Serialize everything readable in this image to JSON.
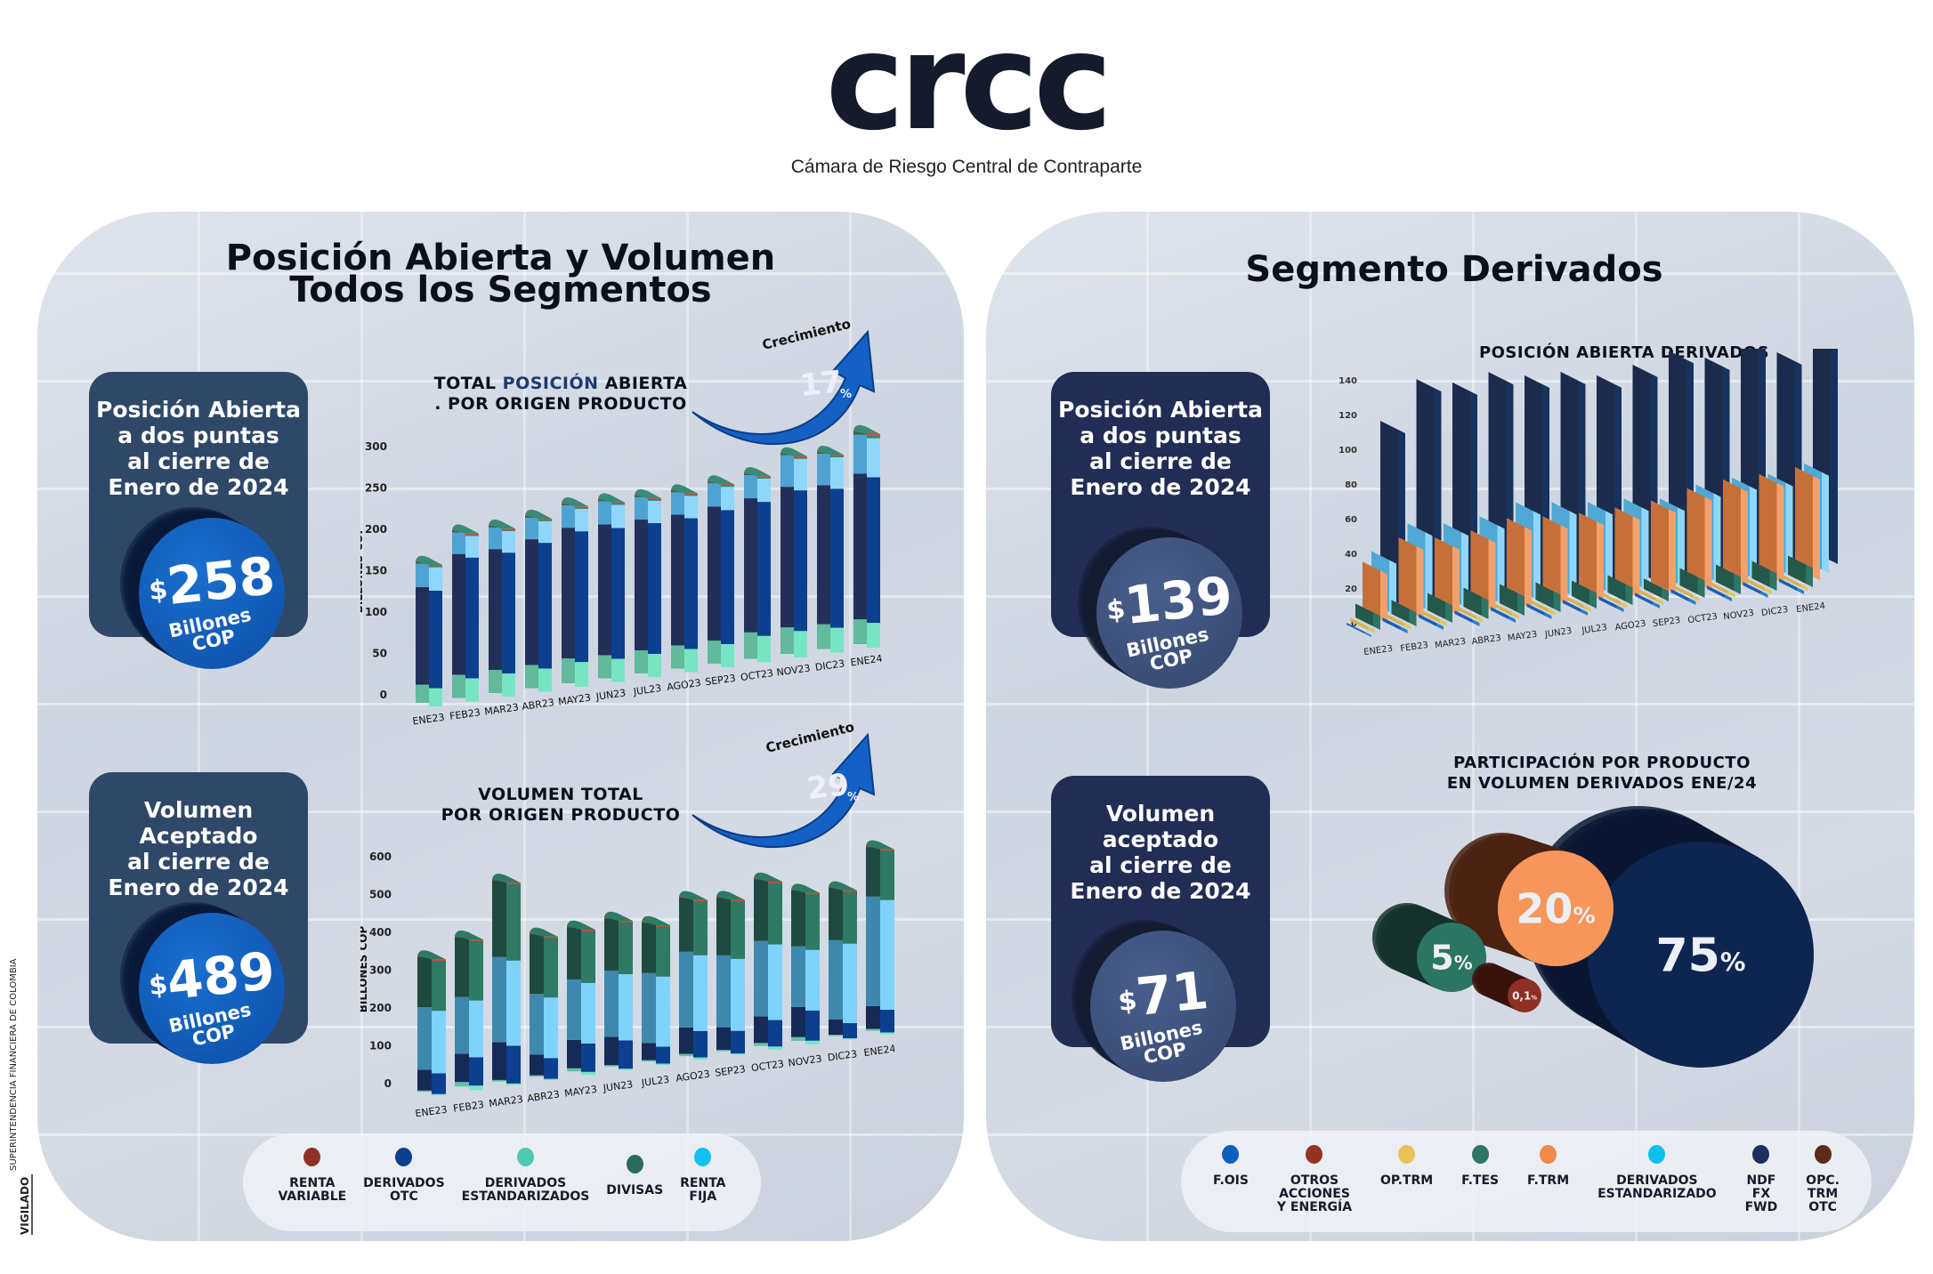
{
  "logo": {
    "text": "crcc",
    "subtitle": "Cámara de Riesgo Central de Contraparte"
  },
  "vigilado": {
    "label": "VIGILADO",
    "entity": "SUPERINTENDENCIA FINANCIERA DE COLOMBIA"
  },
  "left": {
    "title_line1": "Posición Abierta y Volumen",
    "title_line2": "Todos los Segmentos",
    "open_box": {
      "lines": [
        "Posición Abierta",
        "a dos puntas",
        "al cierre de",
        "Enero de 2024"
      ],
      "currency": "$",
      "value": "258",
      "unit1": "Billones",
      "unit2": "COP"
    },
    "volume_box": {
      "lines": [
        "Volumen",
        "Aceptado",
        "al cierre de",
        "Enero de 2024"
      ],
      "currency": "$",
      "value": "489",
      "unit1": "Billones",
      "unit2": "COP"
    },
    "open_growth": {
      "label": "Crecimiento",
      "value": "17",
      "pct": "%"
    },
    "volume_growth": {
      "label": "Crecimiento",
      "value": "29",
      "pct": "%"
    },
    "legend": [
      {
        "label1": "RENTA",
        "label2": "VARIABLE",
        "color": "#8e3324"
      },
      {
        "label1": "DERIVADOS",
        "label2": "OTC",
        "color": "#0d3f8f"
      },
      {
        "label1": "DERIVADOS",
        "label2": "ESTANDARIZADOS",
        "color": "#4fc9b0"
      },
      {
        "label1": "DIVISAS",
        "label2": "",
        "color": "#2b6b5e"
      },
      {
        "label1": "RENTA",
        "label2": "FIJA",
        "color": "#12c0f0"
      }
    ]
  },
  "right": {
    "title": "Segmento Derivados",
    "open_box": {
      "lines": [
        "Posición Abierta",
        "a dos puntas",
        "al cierre de",
        "Enero de 2024"
      ],
      "currency": "$",
      "value": "139",
      "unit1": "Billones",
      "unit2": "COP"
    },
    "volume_box": {
      "lines": [
        "Volumen",
        "aceptado",
        "al cierre de",
        "Enero de 2024"
      ],
      "currency": "$",
      "value": "71",
      "unit1": "Billones",
      "unit2": "COP"
    },
    "legend": [
      {
        "lines": [
          "F.OIS"
        ],
        "color": "#0f5fbf"
      },
      {
        "lines": [
          "OTROS",
          "ACCIONES",
          "Y ENERGÍA"
        ],
        "color": "#943323"
      },
      {
        "lines": [
          "OP.TRM"
        ],
        "color": "#e6c35a"
      },
      {
        "lines": [
          "F.TES"
        ],
        "color": "#2d7565"
      },
      {
        "lines": [
          "F.TRM"
        ],
        "color": "#ef8a48"
      },
      {
        "lines": [
          "DERIVADOS",
          "ESTANDARIZADO"
        ],
        "color": "#0cc0f0"
      },
      {
        "lines": [
          "NDF",
          "FX",
          "FWD"
        ],
        "color": "#1c2f5c"
      },
      {
        "lines": [
          "OPC.",
          "TRM",
          "OTC"
        ],
        "color": "#5a2d18"
      }
    ]
  },
  "chart_data": [
    {
      "type": "bar",
      "stacked": true,
      "title": "TOTAL POSICIÓN ABIERTA . POR ORIGEN PRODUCTO",
      "title_highlight": "POSICIÓN",
      "ylabel": "BILLONES COP",
      "ylim": [
        0,
        300
      ],
      "yticks": [
        0,
        50,
        100,
        150,
        200,
        250,
        300
      ],
      "categories": [
        "ENE23",
        "FEB23",
        "MAR23",
        "ABR23",
        "MAY23",
        "JUN23",
        "JUL23",
        "AGO23",
        "SEP23",
        "OCT23",
        "NOV23",
        "DIC23",
        "ENE24"
      ],
      "series": [
        {
          "name": "DERIVADOS ESTANDARIZADOS",
          "values": [
            22,
            28,
            28,
            28,
            30,
            28,
            28,
            28,
            28,
            32,
            32,
            30,
            30
          ]
        },
        {
          "name": "DERIVADOS OTC",
          "values": [
            118,
            146,
            146,
            152,
            158,
            158,
            158,
            158,
            162,
            162,
            170,
            168,
            176
          ]
        },
        {
          "name": "RENTA FIJA",
          "values": [
            28,
            26,
            26,
            26,
            27,
            28,
            27,
            27,
            28,
            28,
            38,
            38,
            47
          ]
        },
        {
          "name": "DIVISAS",
          "values": [
            2,
            2,
            2,
            2,
            2,
            2,
            2,
            2,
            2,
            2,
            2,
            2,
            3
          ]
        },
        {
          "name": "RENTA VARIABLE",
          "values": [
            1,
            1,
            1,
            1,
            1,
            1,
            1,
            1,
            1,
            1,
            1,
            1,
            2
          ]
        }
      ]
    },
    {
      "type": "bar",
      "stacked": true,
      "title": "VOLUMEN TOTAL POR ORIGEN PRODUCTO",
      "ylabel": "BILLONES COP",
      "ylim": [
        0,
        600
      ],
      "yticks": [
        0,
        100,
        200,
        300,
        400,
        500,
        600
      ],
      "categories": [
        "ENE23",
        "FEB23",
        "MAR23",
        "ABR23",
        "MAY23",
        "JUN23",
        "JUL23",
        "AGO23",
        "SEP23",
        "OCT23",
        "NOV23",
        "DIC23",
        "ENE24"
      ],
      "series": [
        {
          "name": "DERIVADOS ESTANDARIZADOS",
          "values": [
            3,
            12,
            4,
            3,
            8,
            3,
            3,
            6,
            3,
            8,
            10,
            3,
            5
          ]
        },
        {
          "name": "DERIVADOS OTC",
          "values": [
            55,
            75,
            100,
            55,
            75,
            75,
            45,
            70,
            60,
            70,
            80,
            40,
            60
          ]
        },
        {
          "name": "RENTA FIJA",
          "values": [
            165,
            150,
            225,
            160,
            160,
            175,
            185,
            200,
            190,
            200,
            160,
            210,
            290
          ]
        },
        {
          "name": "DIVISAS",
          "values": [
            135,
            160,
            205,
            160,
            140,
            140,
            135,
            145,
            155,
            165,
            150,
            140,
            132
          ]
        },
        {
          "name": "RENTA VARIABLE",
          "values": [
            1,
            1,
            1,
            1,
            1,
            1,
            1,
            1,
            1,
            1,
            1,
            1,
            2
          ]
        }
      ]
    },
    {
      "type": "bar",
      "stacked": false,
      "title": "POSICIÓN ABIERTA DERIVADOS",
      "ylim": [
        0,
        140
      ],
      "yticks": [
        0,
        20,
        40,
        60,
        80,
        100,
        120,
        140
      ],
      "categories": [
        "ENE23",
        "FEB23",
        "MAR23",
        "ABR23",
        "MAY23",
        "JUN23",
        "JUL23",
        "AGO23",
        "SEP23",
        "OCT23",
        "NOV23",
        "DIC23",
        "ENE24"
      ],
      "series": [
        {
          "name": "NDF FX FWD",
          "values": [
            100,
            122,
            118,
            122,
            118,
            118,
            114,
            118,
            124,
            118,
            128,
            117,
            124
          ]
        },
        {
          "name": "DERIVADOS ESTANDARIZADO",
          "values": [
            30,
            44,
            42,
            44,
            50,
            48,
            46,
            46,
            44,
            50,
            52,
            52,
            56
          ]
        },
        {
          "name": "F.TRM",
          "values": [
            28,
            40,
            38,
            40,
            45,
            44,
            44,
            45,
            47,
            52,
            55,
            56,
            58
          ]
        },
        {
          "name": "F.TES",
          "values": [
            8,
            8,
            10,
            11,
            11,
            10,
            9,
            10,
            6,
            10,
            10,
            10,
            11
          ]
        },
        {
          "name": "OP.TRM",
          "values": [
            2,
            2,
            2,
            2,
            2,
            2,
            2,
            2,
            2,
            2,
            2,
            2,
            2
          ]
        },
        {
          "name": "F.OIS",
          "values": [
            1,
            2,
            2,
            2,
            2,
            2,
            2,
            2,
            2,
            2,
            2,
            2,
            2
          ]
        }
      ]
    },
    {
      "type": "pie",
      "title": "PARTICIPACIÓN POR PRODUCTO EN VOLUMEN DERIVADOS ENE/24",
      "slices": [
        {
          "name": "NDF FX FWD",
          "value": 75,
          "label": "75",
          "color": "#0e2550"
        },
        {
          "name": "F.TRM",
          "value": 20,
          "label": "20",
          "color": "#f7965a"
        },
        {
          "name": "F.TES",
          "value": 5,
          "label": "5",
          "color": "#2c7563"
        },
        {
          "name": "OTROS ACCIONES Y ENERGÍA",
          "value": 0.1,
          "label": "0,1",
          "color": "#8e2f22"
        }
      ],
      "pct": "%"
    }
  ]
}
